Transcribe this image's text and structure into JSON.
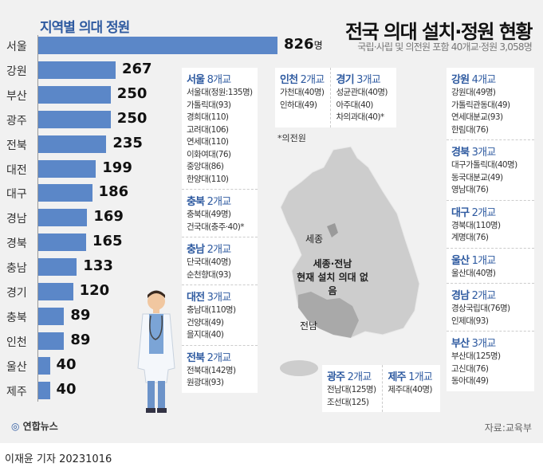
{
  "title": "전국 의대 설치·정원 현황",
  "subtitle": "국립·사립 및 의전원 포함 40개교·정원 3,058명",
  "chart_data": {
    "type": "bar",
    "orientation": "horizontal",
    "title": "지역별 의대 정원",
    "categories": [
      "서울",
      "강원",
      "부산",
      "광주",
      "전북",
      "대전",
      "대구",
      "경남",
      "경북",
      "충남",
      "경기",
      "충북",
      "인천",
      "울산",
      "제주"
    ],
    "values": [
      826,
      267,
      250,
      250,
      235,
      199,
      186,
      169,
      165,
      133,
      120,
      89,
      89,
      40,
      40
    ],
    "unit": "명",
    "bar_color": "#5b87c8"
  },
  "groups": {
    "left": [
      {
        "region": "서울",
        "count": "8개교",
        "items": [
          "서울대(정원:135명)",
          "가톨릭대(93)",
          "경희대(110)",
          "고려대(106)",
          "연세대(110)",
          "이화여대(76)",
          "중앙대(86)",
          "한양대(110)"
        ]
      },
      {
        "region": "충북",
        "count": "2개교",
        "items": [
          "충북대(49명)",
          "건국대(충주·40)*"
        ]
      },
      {
        "region": "충남",
        "count": "2개교",
        "items": [
          "단국대(40명)",
          "순천향대(93)"
        ]
      },
      {
        "region": "대전",
        "count": "3개교",
        "items": [
          "충남대(110명)",
          "건양대(49)",
          "을지대(40)"
        ]
      },
      {
        "region": "전북",
        "count": "2개교",
        "items": [
          "전북대(142명)",
          "원광대(93)"
        ]
      }
    ],
    "top": [
      {
        "region": "인천",
        "count": "2개교",
        "items": [
          "가천대(40명)",
          "인하대(49)"
        ]
      },
      {
        "region": "경기",
        "count": "3개교",
        "items": [
          "성균관대(40명)",
          "아주대(40)",
          "차의과대(40)*"
        ]
      }
    ],
    "right": [
      {
        "region": "강원",
        "count": "4개교",
        "items": [
          "강원대(49명)",
          "가톨릭관동대(49)",
          "연세대분교(93)",
          "한림대(76)"
        ]
      },
      {
        "region": "경북",
        "count": "3개교",
        "items": [
          "대구가톨릭대(40명)",
          "동국대분교(49)",
          "영남대(76)"
        ]
      },
      {
        "region": "대구",
        "count": "2개교",
        "items": [
          "경북대(110명)",
          "계명대(76)"
        ]
      },
      {
        "region": "울산",
        "count": "1개교",
        "items": [
          "울산대(40명)"
        ]
      },
      {
        "region": "경남",
        "count": "2개교",
        "items": [
          "경상국립대(76명)",
          "인제대(93)"
        ]
      },
      {
        "region": "부산",
        "count": "3개교",
        "items": [
          "부산대(125명)",
          "고신대(76)",
          "동아대(49)"
        ]
      }
    ],
    "bottom": [
      {
        "region": "광주",
        "count": "2개교",
        "items": [
          "전남대(125명)",
          "조선대(125)"
        ]
      },
      {
        "region": "제주",
        "count": "1개교",
        "items": [
          "제주대(40명)"
        ]
      }
    ]
  },
  "note": "*의전원",
  "map": {
    "sejong": "세종",
    "no_school_line1": "세종·전남",
    "no_school_line2": "현재 설치 의대 없음",
    "jeonnam": "전남"
  },
  "source": "자료:교육부",
  "logo": "연합뉴스",
  "credit": "이재윤 기자  20231016"
}
